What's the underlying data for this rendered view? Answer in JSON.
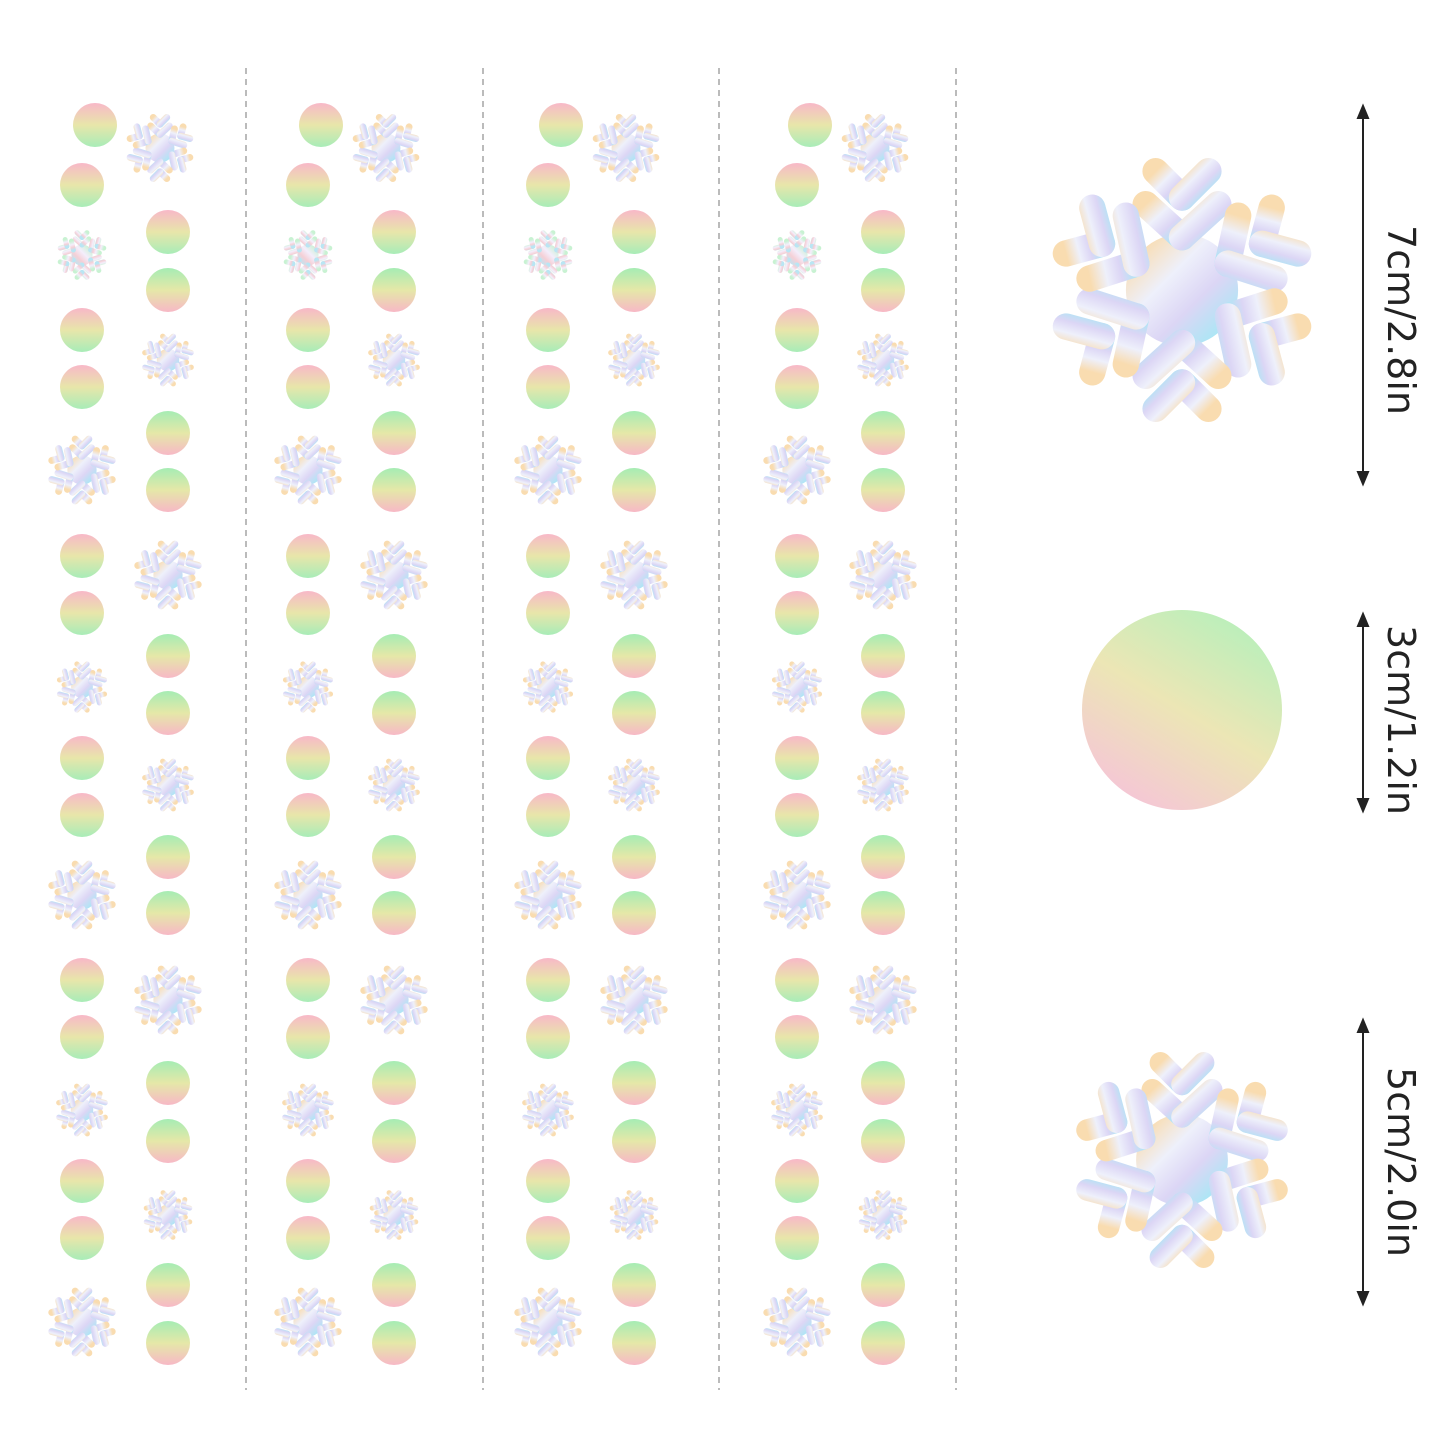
{
  "dimensions": {
    "labels": [
      "7cm/2.8in",
      "3cm/1.2in",
      "5cm/2.0in"
    ]
  }
}
